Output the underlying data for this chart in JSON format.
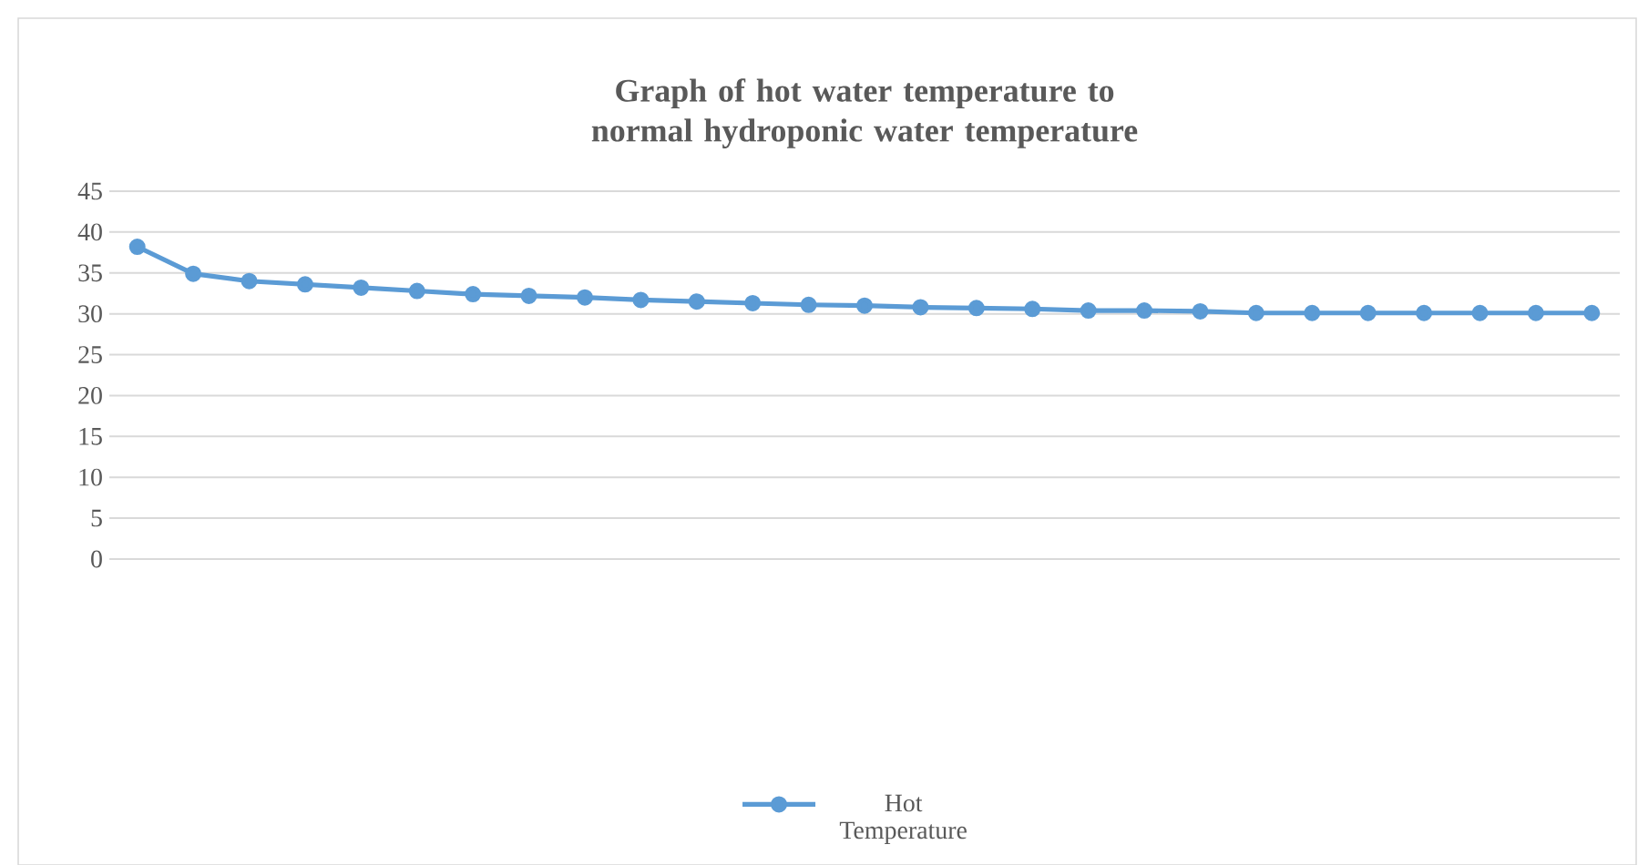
{
  "chart_data": {
    "type": "line",
    "title": "Graph of hot water temperature to normal hydroponic water temperature",
    "categories": [
      null,
      null,
      null,
      null,
      null,
      null,
      null,
      null,
      null,
      null,
      null,
      null,
      null,
      null,
      null,
      null,
      null,
      null,
      null,
      null,
      null,
      null,
      null,
      null,
      null,
      null,
      null
    ],
    "series": [
      {
        "name": "Hot Temperature",
        "color": "#5b9bd5",
        "values": [
          38.2,
          34.9,
          34.0,
          33.6,
          33.2,
          32.8,
          32.4,
          32.2,
          32.0,
          31.7,
          31.5,
          31.3,
          31.1,
          31.0,
          30.8,
          30.7,
          30.6,
          30.4,
          30.4,
          30.3,
          30.1,
          30.1,
          30.1,
          30.1,
          30.1,
          30.1,
          30.1
        ]
      }
    ],
    "ylim": [
      0,
      45
    ],
    "yticks": [
      0,
      5,
      10,
      15,
      20,
      25,
      30,
      35,
      40,
      45
    ],
    "grid": "y",
    "legend": "bottom",
    "marker": "circle",
    "line_style": "solid"
  }
}
